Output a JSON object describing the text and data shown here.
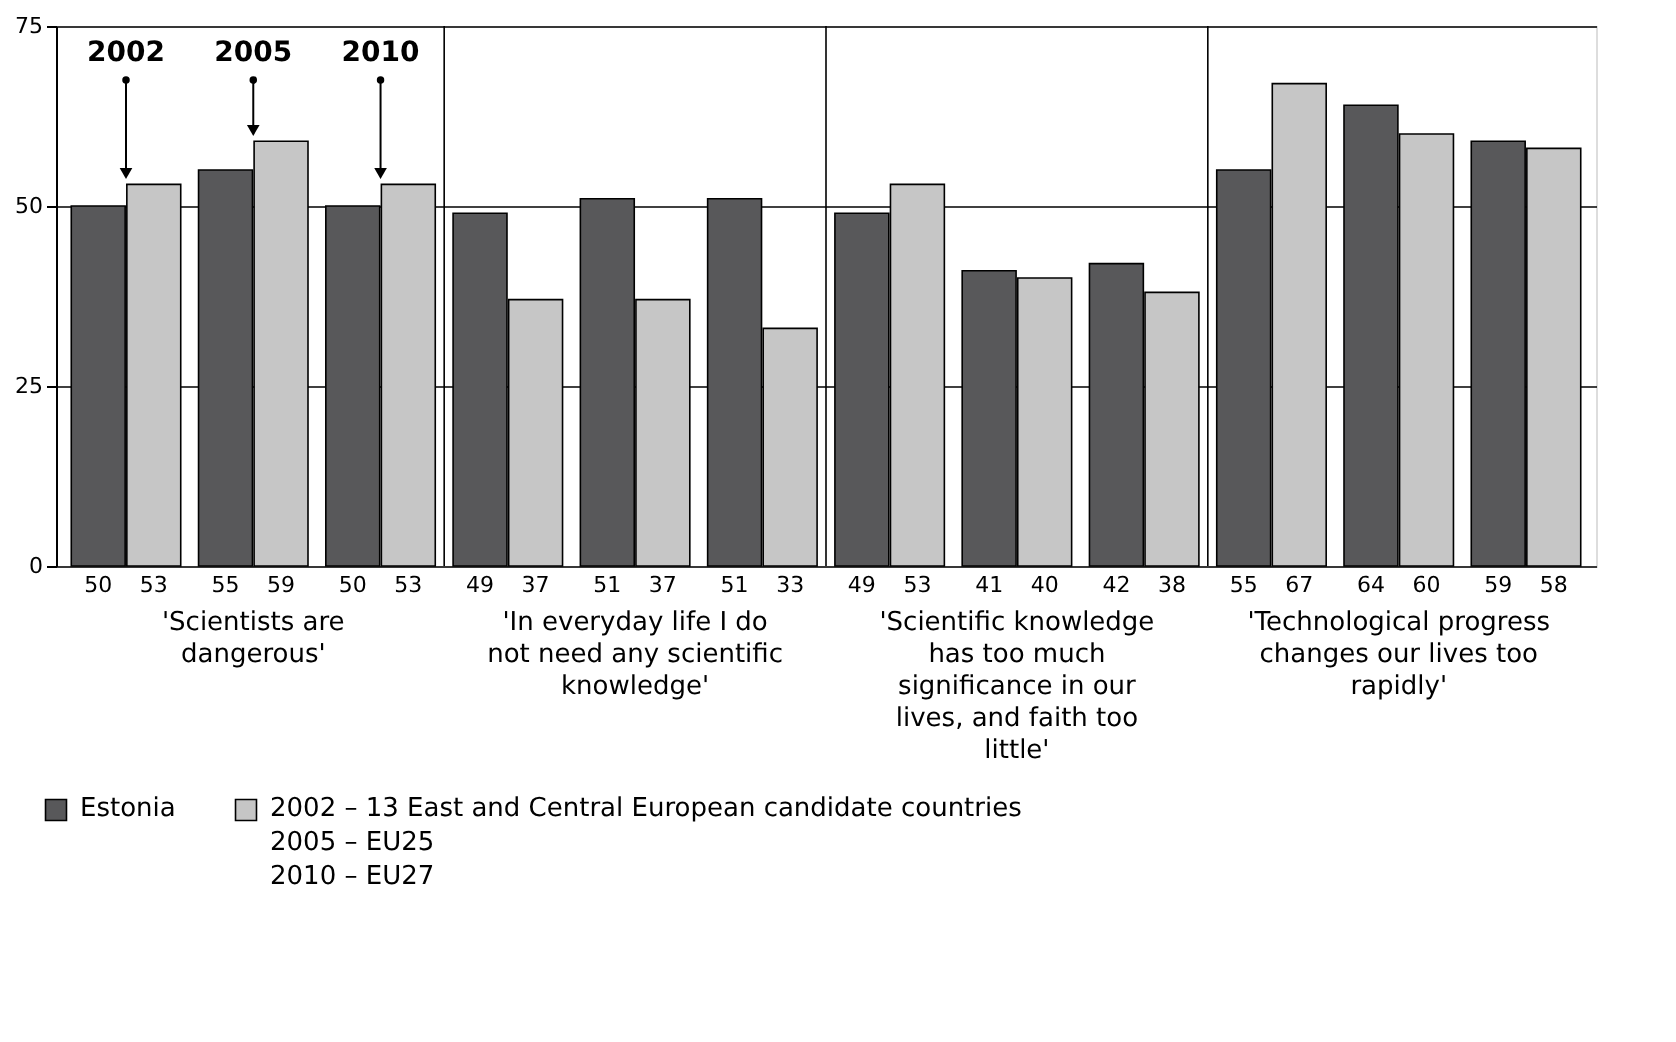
{
  "chart_data": {
    "type": "bar",
    "categories": [
      "2002",
      "2005",
      "2010",
      null,
      null,
      null,
      null,
      null,
      null,
      null,
      null,
      null
    ],
    "ylim": [
      0,
      75
    ],
    "yticks": [
      0,
      25,
      50,
      75
    ],
    "grid": true,
    "data_labels": true,
    "legend": "bottom left",
    "annotations": [
      "'Scientists are dangerous'",
      "'In everyday life I do not need any scientific knowledge'",
      "'Scientific knowledge has too much significance in our lives, and faith too little'",
      "'Technological progress changes our lives too rapidly'"
    ],
    "series": [
      {
        "name": "Estonia",
        "color": "#58585a",
        "values": [
          50,
          55,
          50,
          49,
          51,
          51,
          49,
          41,
          42,
          55,
          64,
          59
        ]
      },
      {
        "name": "2002 – 13 East and Central European candidate countries\n2005 – EU25\n2010 – EU27",
        "color": "#c6c6c6",
        "values": [
          53,
          59,
          53,
          37,
          37,
          33,
          53,
          40,
          38,
          67,
          60,
          58
        ]
      }
    ]
  }
}
